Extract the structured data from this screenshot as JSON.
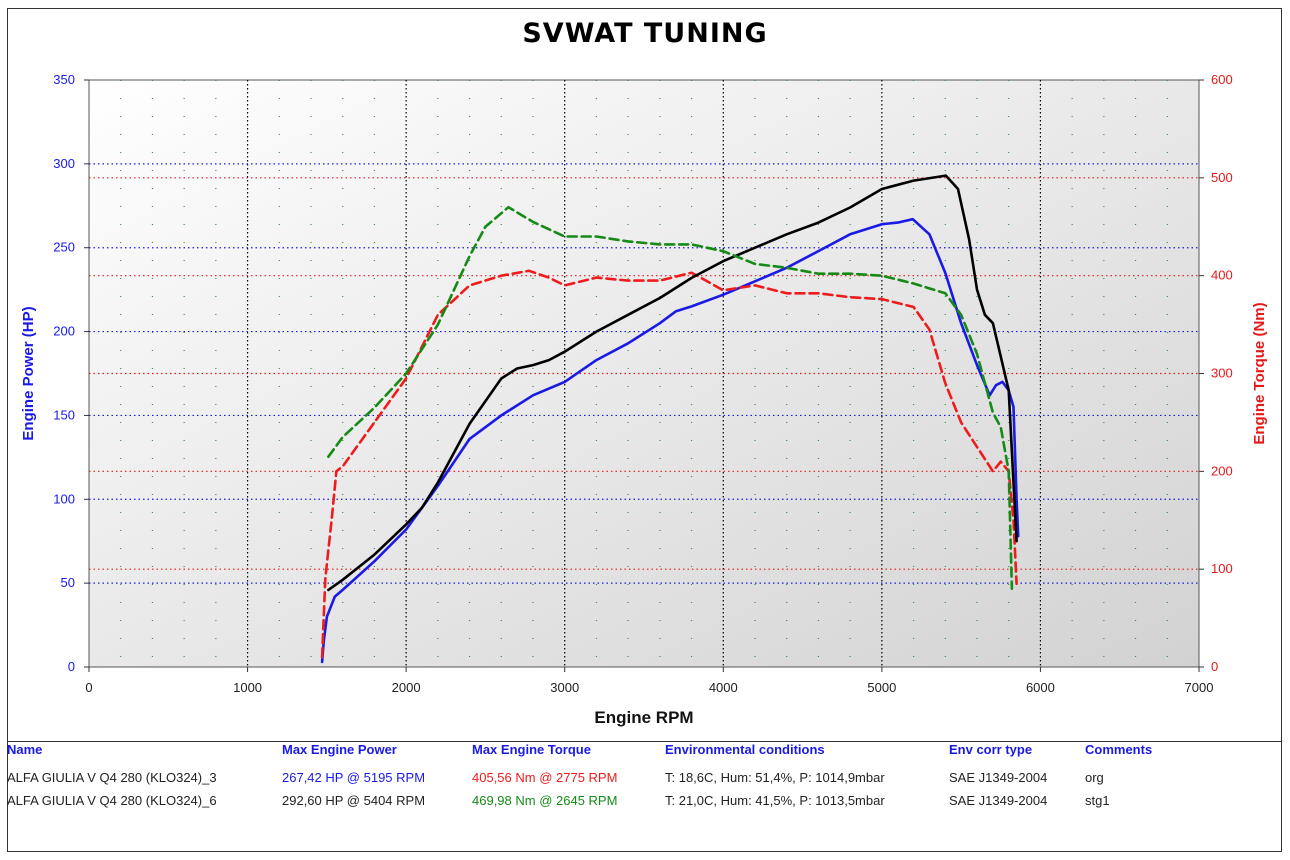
{
  "title": "SVWAT TUNING",
  "colors": {
    "power_axis": "#1a1ae6",
    "torque_axis": "#e61919",
    "run3_power": "#1a1ae6",
    "run3_torque": "#ee1c1c",
    "run6_power": "#000000",
    "run6_torque": "#158a15"
  },
  "chart_data": {
    "type": "line",
    "title": "SVWAT TUNING",
    "xlabel": "Engine RPM",
    "ylabel": "Engine Power (HP)",
    "y2label": "Engine Torque (Nm)",
    "xlim": [
      0,
      7000
    ],
    "ylim": [
      0,
      350
    ],
    "y2lim": [
      0,
      600
    ],
    "xticks": [
      0,
      1000,
      2000,
      3000,
      4000,
      5000,
      6000,
      7000
    ],
    "yticks": [
      0,
      50,
      100,
      150,
      200,
      250,
      300,
      350
    ],
    "y2ticks": [
      0,
      100,
      200,
      300,
      400,
      500,
      600
    ],
    "grid": true,
    "series": [
      {
        "name": "ALFA GIULIA V Q4 280 (KLO324)_3",
        "quantity": "Engine Power",
        "axis": "left",
        "style": "solid",
        "color": "#1a1ae6",
        "x": [
          1470,
          1480,
          1500,
          1550,
          1600,
          1800,
          2000,
          2200,
          2400,
          2600,
          2800,
          3000,
          3200,
          3400,
          3600,
          3700,
          3800,
          4000,
          4200,
          4400,
          4600,
          4800,
          5000,
          5100,
          5195,
          5300,
          5400,
          5500,
          5600,
          5680,
          5720,
          5760,
          5800,
          5830,
          5850,
          5860
        ],
        "y": [
          3,
          15,
          30,
          42,
          46,
          63,
          82,
          108,
          136,
          150,
          162,
          170,
          183,
          193,
          205,
          212,
          215,
          222,
          230,
          238,
          248,
          258,
          264,
          265,
          267,
          258,
          235,
          205,
          180,
          162,
          168,
          170,
          165,
          155,
          100,
          78
        ]
      },
      {
        "name": "ALFA GIULIA V Q4 280 (KLO324)_3",
        "quantity": "Engine Torque",
        "axis": "right",
        "style": "dashed",
        "color": "#ee1c1c",
        "x": [
          1470,
          1490,
          1510,
          1530,
          1560,
          1600,
          1800,
          2000,
          2200,
          2400,
          2600,
          2775,
          2900,
          3000,
          3200,
          3400,
          3600,
          3800,
          4000,
          4200,
          4400,
          4600,
          4800,
          5000,
          5200,
          5300,
          5400,
          5500,
          5600,
          5700,
          5750,
          5800,
          5830,
          5850
        ],
        "y": [
          10,
          90,
          120,
          150,
          200,
          205,
          250,
          295,
          360,
          390,
          400,
          405,
          398,
          390,
          398,
          395,
          395,
          403,
          385,
          390,
          382,
          382,
          378,
          376,
          368,
          345,
          290,
          250,
          225,
          200,
          210,
          200,
          150,
          85
        ]
      },
      {
        "name": "ALFA GIULIA V Q4 280 (KLO324)_6",
        "quantity": "Engine Power",
        "axis": "left",
        "style": "solid",
        "color": "#000000",
        "x": [
          1510,
          1600,
          1800,
          2000,
          2100,
          2200,
          2400,
          2600,
          2700,
          2800,
          2900,
          3000,
          3200,
          3400,
          3600,
          3800,
          4000,
          4200,
          4400,
          4600,
          4800,
          5000,
          5200,
          5404,
          5480,
          5550,
          5600,
          5650,
          5700,
          5750,
          5800,
          5830,
          5850
        ],
        "y": [
          46,
          52,
          67,
          85,
          95,
          110,
          145,
          172,
          178,
          180,
          183,
          188,
          200,
          210,
          220,
          232,
          242,
          250,
          258,
          265,
          274,
          285,
          290,
          293,
          285,
          255,
          225,
          210,
          205,
          185,
          165,
          110,
          75
        ]
      },
      {
        "name": "ALFA GIULIA V Q4 280 (KLO324)_6",
        "quantity": "Engine Torque",
        "axis": "right",
        "style": "dashed",
        "color": "#158a15",
        "x": [
          1510,
          1600,
          1800,
          2000,
          2200,
          2400,
          2500,
          2645,
          2800,
          3000,
          3200,
          3400,
          3600,
          3800,
          4000,
          4200,
          4400,
          4600,
          4800,
          5000,
          5200,
          5400,
          5500,
          5600,
          5700,
          5750,
          5800,
          5820
        ],
        "y": [
          215,
          235,
          265,
          300,
          350,
          420,
          450,
          470,
          455,
          440,
          440,
          435,
          432,
          432,
          425,
          412,
          408,
          402,
          402,
          400,
          392,
          382,
          360,
          320,
          260,
          245,
          200,
          80
        ]
      }
    ]
  },
  "table": {
    "headers": [
      "Name",
      "Max Engine Power",
      "Max Engine Torque",
      "Environmental conditions",
      "Env corr type",
      "Comments"
    ],
    "rows": [
      {
        "name": "ALFA GIULIA V Q4 280 (KLO324)_3",
        "max_power": "267,42 HP @ 5195 RPM",
        "max_torque": "405,56 Nm @ 2775 RPM",
        "env": "T: 18,6C, Hum: 51,4%, P: 1014,9mbar",
        "corr": "SAE J1349-2004",
        "comment": "org"
      },
      {
        "name": "ALFA GIULIA V Q4 280 (KLO324)_6",
        "max_power": "292,60 HP @ 5404 RPM",
        "max_torque": "469,98 Nm @ 2645 RPM",
        "env": "T: 21,0C, Hum: 41,5%, P: 1013,5mbar",
        "corr": "SAE J1349-2004",
        "comment": "stg1"
      }
    ]
  }
}
